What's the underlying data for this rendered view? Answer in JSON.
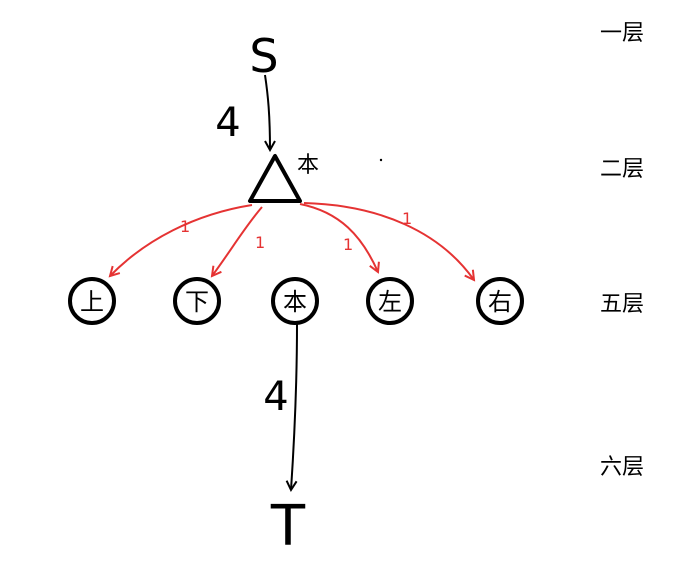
{
  "layers": [
    "一层",
    "二层",
    "五层",
    "六层"
  ],
  "source": {
    "label": "S"
  },
  "top_node": {
    "label": "本"
  },
  "bottom_node": {
    "label": "T"
  },
  "weights": {
    "source_edge": "4",
    "bottom_edge": "4",
    "red_edges": "1"
  },
  "ring_nodes": [
    {
      "label": "上"
    },
    {
      "label": "下"
    },
    {
      "label": "本"
    },
    {
      "label": "左"
    },
    {
      "label": "右"
    }
  ],
  "colors": {
    "ink": "#000000",
    "red_edge": "#e53333",
    "background": "#ffffff"
  }
}
